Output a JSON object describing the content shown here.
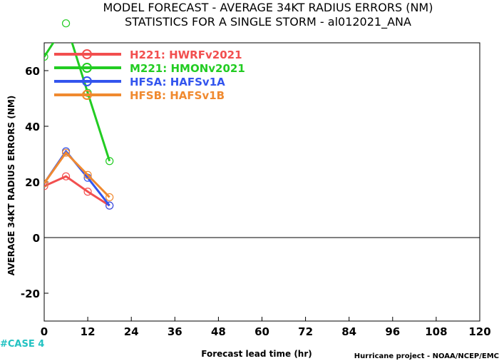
{
  "chart_data": {
    "type": "line",
    "title": "MODEL FORECAST - AVERAGE 34KT RADIUS ERRORS (NM)",
    "subtitle": "STATISTICS FOR A SINGLE STORM - al012021_ANA",
    "xlabel": "Forecast lead time (hr)",
    "ylabel": "AVERAGE 34KT RADIUS ERRORS (NM)",
    "xlim": [
      0,
      120
    ],
    "ylim": [
      -30,
      70
    ],
    "xticks": [
      0,
      12,
      24,
      36,
      48,
      60,
      72,
      84,
      96,
      108,
      120
    ],
    "yticks": [
      -20,
      0,
      20,
      40,
      60
    ],
    "zero_line": true,
    "grid": false,
    "legend_position": "top-left",
    "series": [
      {
        "name": "H221: HWRFv2021",
        "color": "#f24f4f",
        "x": [
          0,
          6,
          12,
          18
        ],
        "y": [
          18.5,
          22,
          16.5,
          11.5
        ]
      },
      {
        "name": "M221: HMONv2021",
        "color": "#22cc22",
        "x": [
          0,
          6,
          12,
          18
        ],
        "y": [
          65,
          77,
          52,
          27.5
        ]
      },
      {
        "name": "HFSA: HAFSv1A",
        "color": "#3355ee",
        "x": [
          0,
          6,
          12,
          18
        ],
        "y": [
          19.5,
          31,
          21.5,
          11.5
        ]
      },
      {
        "name": "HFSB: HAFSv1B",
        "color": "#f08a30",
        "x": [
          0,
          6,
          12,
          18
        ],
        "y": [
          19.5,
          30.5,
          22.5,
          14.5
        ]
      }
    ]
  },
  "case_label": "#CASE 4",
  "case_color": "#22c2c2",
  "credit": "Hurricane project - NOAA/NCEP/EMC"
}
